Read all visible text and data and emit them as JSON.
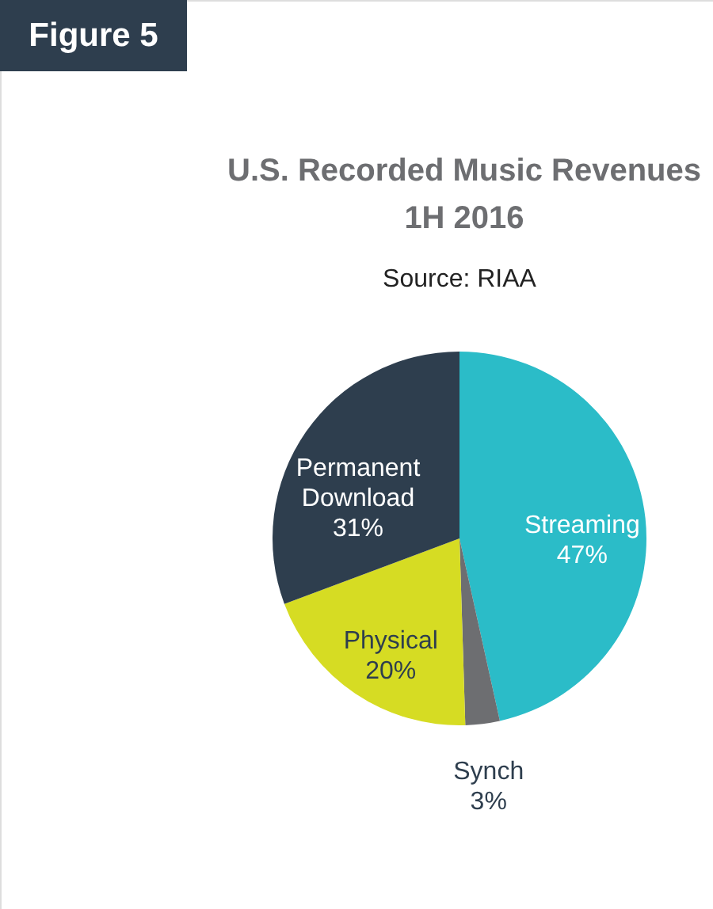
{
  "chart_data": {
    "type": "pie",
    "title": "U.S. Recorded Music Revenues 1H 2016",
    "subtitle": "Source: RIAA",
    "annotations": [
      "Figure 5"
    ],
    "categories": [
      "Streaming",
      "Synch",
      "Physical",
      "Permanent Download"
    ],
    "values": [
      47,
      3,
      20,
      31
    ],
    "value_labels": [
      "47%",
      "3%",
      "20%",
      "31%"
    ],
    "colors": [
      "#2bbcc8",
      "#6d6e71",
      "#d6dc23",
      "#2e3e4e"
    ]
  }
}
